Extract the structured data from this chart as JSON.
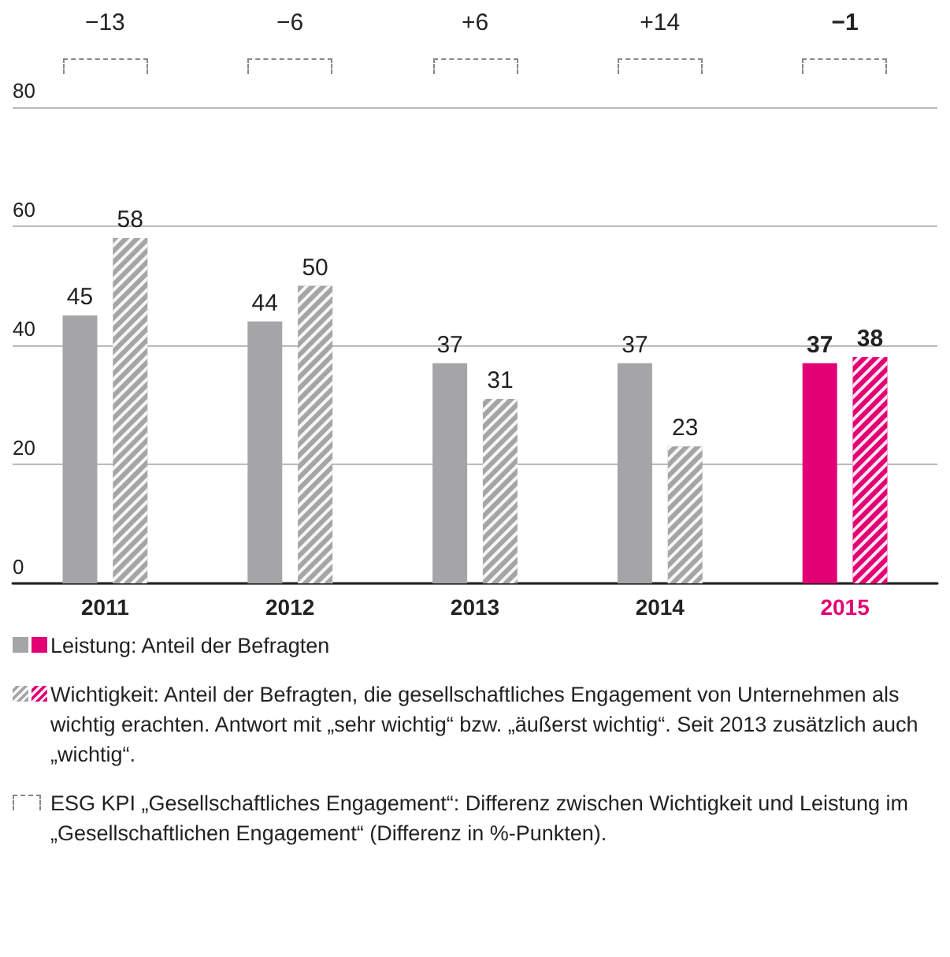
{
  "chart_data": {
    "type": "bar",
    "categories": [
      "2011",
      "2012",
      "2013",
      "2014",
      "2015"
    ],
    "series": [
      {
        "name": "Leistung: Anteil der Befragten",
        "colors": [
          "#a5a5a7",
          "#a5a5a7",
          "#a5a5a7",
          "#a5a5a7",
          "#e20074"
        ],
        "values": [
          45,
          44,
          37,
          37,
          37
        ]
      },
      {
        "name": "Wichtigkeit: Anteil der Befragten, die gesellschaftliches Engagement von Unternehmen als wichtig erachten. Antwort mit „sehr wichtig“ bzw. „äußerst wichtig“. Seit 2013 zusätzlich auch „wichtig“.",
        "colors": [
          "#a5a5a7",
          "#a5a5a7",
          "#a5a5a7",
          "#a5a5a7",
          "#e20074"
        ],
        "values": [
          58,
          50,
          31,
          23,
          38
        ]
      }
    ],
    "ylim": [
      0,
      80
    ],
    "yticks": [
      0,
      20,
      40,
      60,
      80
    ],
    "grid": "y",
    "data_labels": true,
    "legend": "bottom",
    "annotations": [
      "−13",
      "−6",
      "+6",
      "+14",
      "−1",
      "ESG KPI „Gesellschaftliches Engagement“: Differenz zwischen Wichtigkeit und Leistung im „Gesellschaftlichen Engagement“ (Differenz in %-Punkten)."
    ]
  }
}
